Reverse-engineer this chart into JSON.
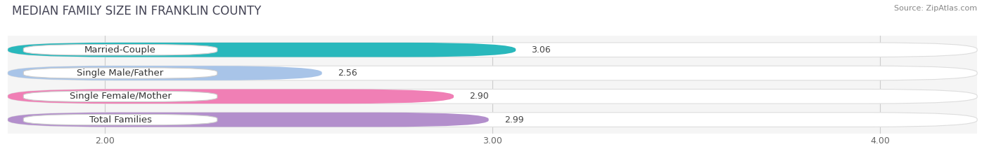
{
  "title": "Median Family Size in Franklin County",
  "title_upper": "MEDIAN FAMILY SIZE IN FRANKLIN COUNTY",
  "source": "Source: ZipAtlas.com",
  "categories": [
    "Married-Couple",
    "Single Male/Father",
    "Single Female/Mother",
    "Total Families"
  ],
  "values": [
    3.06,
    2.56,
    2.9,
    2.99
  ],
  "bar_colors": [
    "#29b8bc",
    "#a8c4e8",
    "#f07fb5",
    "#b38fcc"
  ],
  "label_bg_color": "#ffffff",
  "xlim": [
    1.75,
    4.25
  ],
  "xlim_left": 1.75,
  "xticks": [
    2.0,
    3.0,
    4.0
  ],
  "xtick_labels": [
    "2.00",
    "3.00",
    "4.00"
  ],
  "bar_height": 0.62,
  "background_color": "#ffffff",
  "plot_bg_color": "#f5f5f5",
  "title_fontsize": 12,
  "label_fontsize": 9.5,
  "value_fontsize": 9,
  "source_fontsize": 8
}
